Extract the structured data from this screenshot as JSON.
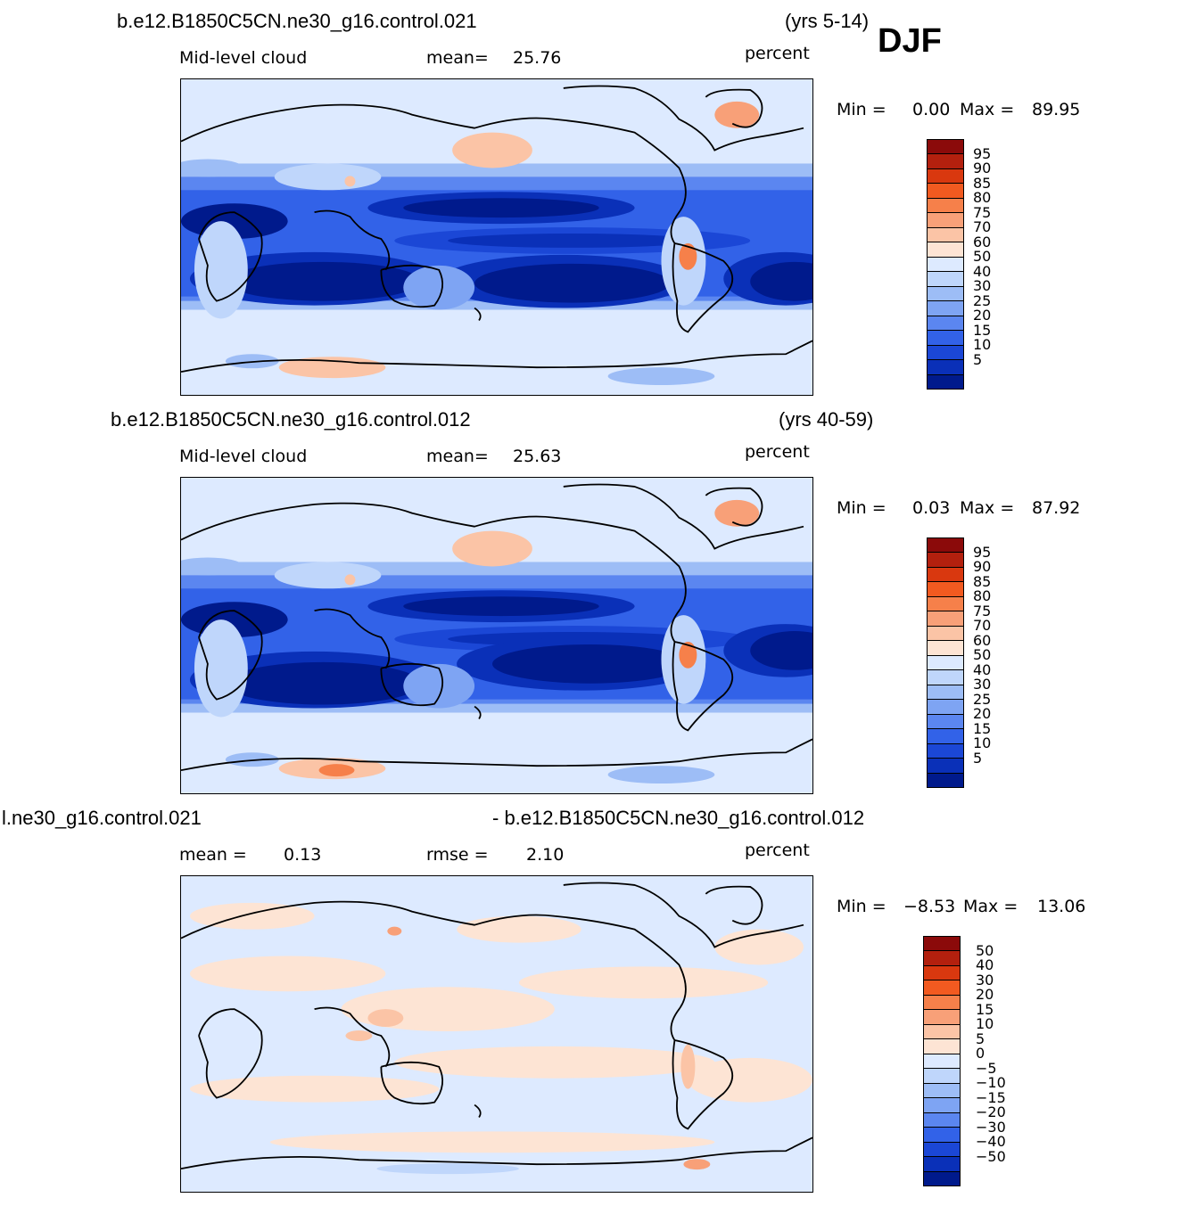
{
  "season": "DJF",
  "panels": [
    {
      "case": "b.e12.B1850C5CN.ne30_g16.control.021",
      "years": "(yrs 5-14)",
      "variable": "Mid-level cloud",
      "stat1_label": "mean=",
      "stat1_value": "25.76",
      "units": "percent",
      "min_label": "Min =",
      "min_value": "0.00",
      "max_label": "Max =",
      "max_value": "89.95",
      "colorbar_labels": [
        "95",
        "90",
        "85",
        "80",
        "75",
        "70",
        "60",
        "50",
        "40",
        "30",
        "25",
        "20",
        "15",
        "10",
        "5"
      ]
    },
    {
      "case": "b.e12.B1850C5CN.ne30_g16.control.012",
      "years": "(yrs 40-59)",
      "variable": "Mid-level cloud",
      "stat1_label": "mean=",
      "stat1_value": "25.63",
      "units": "percent",
      "min_label": "Min =",
      "min_value": "0.03",
      "max_label": "Max =",
      "max_value": "87.92",
      "colorbar_labels": [
        "95",
        "90",
        "85",
        "80",
        "75",
        "70",
        "60",
        "50",
        "40",
        "30",
        "25",
        "20",
        "15",
        "10",
        "5"
      ]
    },
    {
      "case_left": "l.ne30_g16.control.021",
      "case_right": "- b.e12.B1850C5CN.ne30_g16.control.012",
      "stat1_label": "mean =",
      "stat1_value": "0.13",
      "stat2_label": "rmse =",
      "stat2_value": "2.10",
      "units": "percent",
      "min_label": "Min =",
      "min_value": "−8.53",
      "max_label": "Max =",
      "max_value": "13.06",
      "colorbar_labels": [
        "50",
        "40",
        "30",
        "20",
        "15",
        "10",
        "5",
        "0",
        "−5",
        "−10",
        "−15",
        "−20",
        "−30",
        "−40",
        "−50"
      ]
    }
  ],
  "colors": {
    "field_scale": [
      "#8b0a0a",
      "#b3200e",
      "#d9380f",
      "#f25a20",
      "#f6804a",
      "#f8a078",
      "#fbc4a6",
      "#fde4d4",
      "#ddeaff",
      "#bfd6fb",
      "#9dbdf6",
      "#7ea4f3",
      "#5b86f0",
      "#3262e8",
      "#1b47d6",
      "#0a30b8",
      "#001a8c"
    ],
    "diff_scale": [
      "#8b0a0a",
      "#b3200e",
      "#d9380f",
      "#f25a20",
      "#f6804a",
      "#f8a078",
      "#fbc4a6",
      "#fde4d4",
      "#ddeaff",
      "#bfd6fb",
      "#9dbdf6",
      "#7ea4f3",
      "#5b86f0",
      "#3262e8",
      "#1b47d6",
      "#0a30b8",
      "#001a8c"
    ]
  }
}
